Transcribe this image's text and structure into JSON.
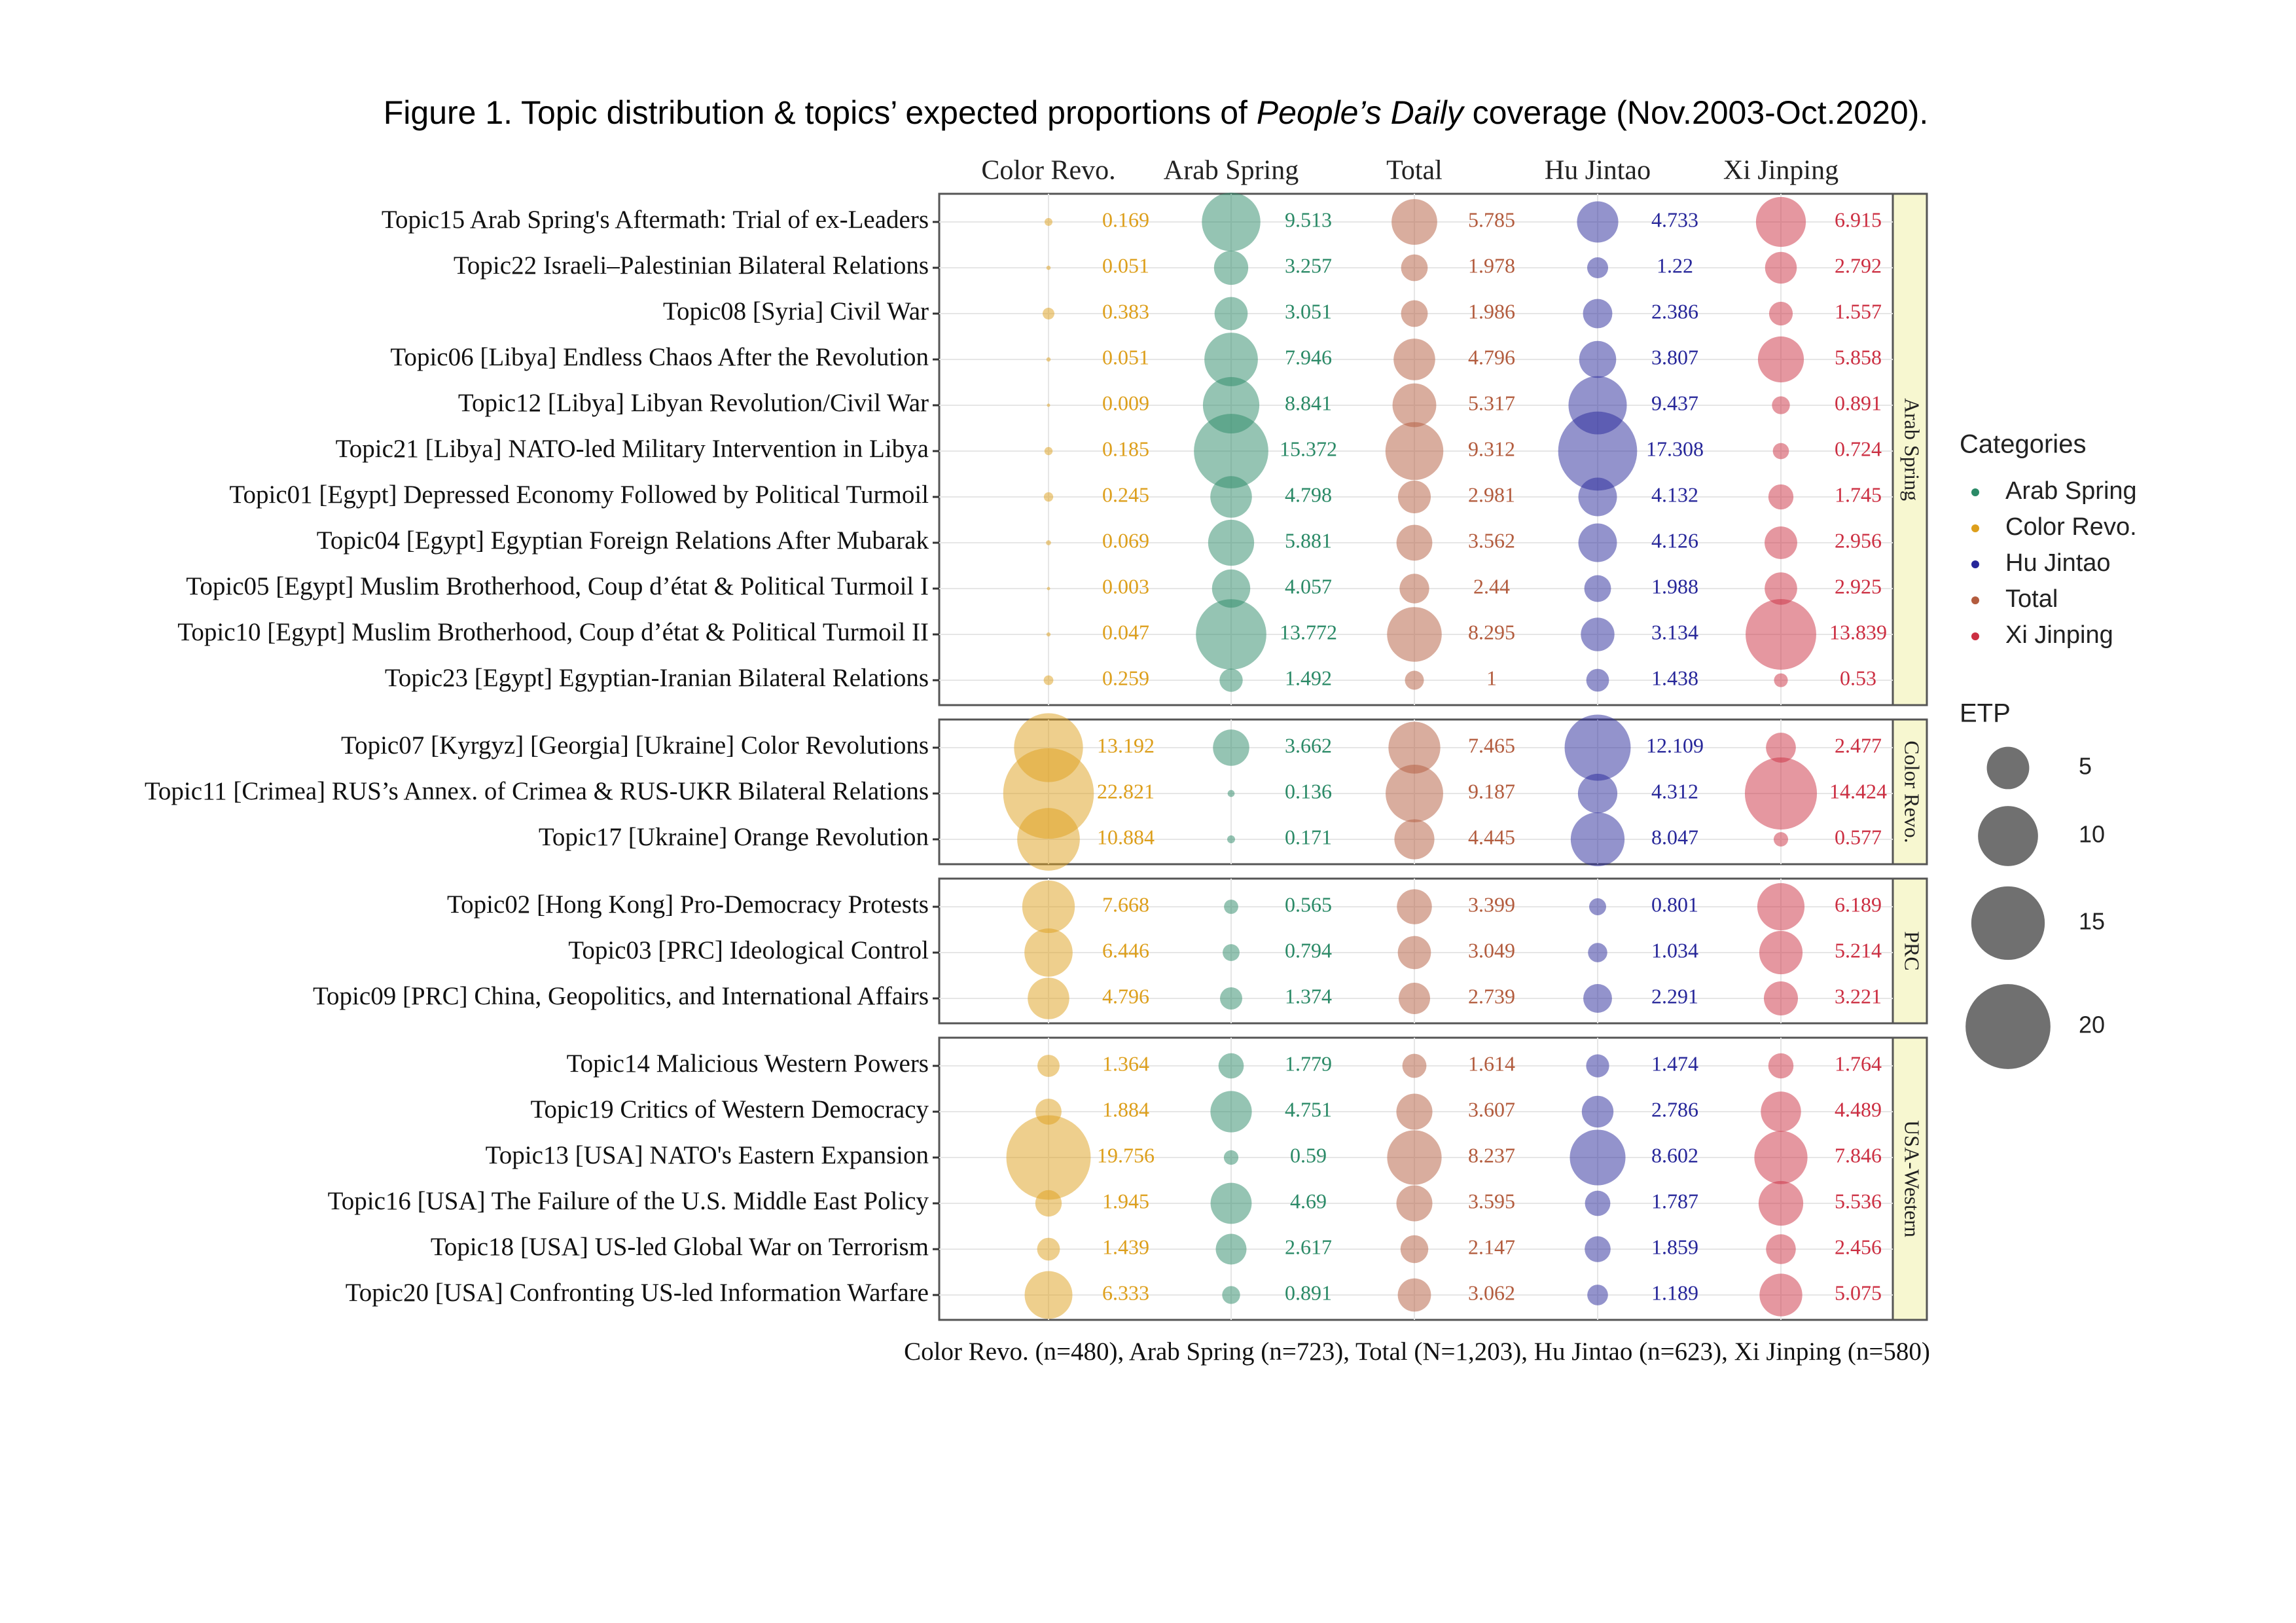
{
  "chart_data": {
    "type": "bubble-grid",
    "title": [
      "Figure 1. Topic distribution & topics’ expected proportions of ",
      "People’s Daily",
      " coverage (Nov.2003-Oct.2020)."
    ],
    "columns": [
      {
        "name": "Color Revo.",
        "color": "#dd9f1c"
      },
      {
        "name": "Arab Spring",
        "color": "#2b8a67"
      },
      {
        "name": "Total",
        "color": "#b35c3e"
      },
      {
        "name": "Hu Jintao",
        "color": "#27279a"
      },
      {
        "name": "Xi Jinping",
        "color": "#cc2f42"
      }
    ],
    "panels": [
      {
        "name": "Arab Spring",
        "rows": [
          {
            "label": "Topic15 Arab Spring's Aftermath: Trial of ex-Leaders",
            "values": [
              0.169,
              9.513,
              5.785,
              4.733,
              6.915
            ]
          },
          {
            "label": "Topic22 Israeli–Palestinian Bilateral Relations",
            "values": [
              0.051,
              3.257,
              1.978,
              1.22,
              2.792
            ]
          },
          {
            "label": "Topic08 [Syria] Civil War",
            "values": [
              0.383,
              3.051,
              1.986,
              2.386,
              1.557
            ]
          },
          {
            "label": "Topic06 [Libya] Endless Chaos After the Revolution",
            "values": [
              0.051,
              7.946,
              4.796,
              3.807,
              5.858
            ]
          },
          {
            "label": "Topic12 [Libya] Libyan Revolution/Civil War",
            "values": [
              0.009,
              8.841,
              5.317,
              9.437,
              0.891
            ]
          },
          {
            "label": "Topic21 [Libya] NATO-led Military Intervention in Libya",
            "values": [
              0.185,
              15.372,
              9.312,
              17.308,
              0.724
            ]
          },
          {
            "label": "Topic01 [Egypt] Depressed Economy Followed by Political Turmoil",
            "values": [
              0.245,
              4.798,
              2.981,
              4.132,
              1.745
            ]
          },
          {
            "label": "Topic04 [Egypt] Egyptian Foreign Relations After Mubarak",
            "values": [
              0.069,
              5.881,
              3.562,
              4.126,
              2.956
            ]
          },
          {
            "label": "Topic05 [Egypt] Muslim Brotherhood, Coup d’état & Political Turmoil I",
            "values": [
              0.003,
              4.057,
              2.44,
              1.988,
              2.925
            ]
          },
          {
            "label": "Topic10 [Egypt] Muslim Brotherhood, Coup d’état & Political Turmoil II",
            "values": [
              0.047,
              13.772,
              8.295,
              3.134,
              13.839
            ]
          },
          {
            "label": "Topic23 [Egypt] Egyptian-Iranian Bilateral Relations",
            "values": [
              0.259,
              1.492,
              1,
              1.438,
              0.53
            ]
          }
        ]
      },
      {
        "name": "Color Revo.",
        "rows": [
          {
            "label": "Topic07 [Kyrgyz] [Georgia] [Ukraine] Color Revolutions",
            "values": [
              13.192,
              3.662,
              7.465,
              12.109,
              2.477
            ]
          },
          {
            "label": "Topic11 [Crimea] RUS’s Annex. of Crimea & RUS-UKR Bilateral Relations",
            "values": [
              22.821,
              0.136,
              9.187,
              4.312,
              14.424
            ]
          },
          {
            "label": "Topic17 [Ukraine] Orange Revolution",
            "values": [
              10.884,
              0.171,
              4.445,
              8.047,
              0.577
            ]
          }
        ]
      },
      {
        "name": "PRC",
        "rows": [
          {
            "label": "Topic02 [Hong Kong] Pro-Democracy Protests",
            "values": [
              7.668,
              0.565,
              3.399,
              0.801,
              6.189
            ]
          },
          {
            "label": "Topic03 [PRC] Ideological Control",
            "values": [
              6.446,
              0.794,
              3.049,
              1.034,
              5.214
            ]
          },
          {
            "label": "Topic09 [PRC] China, Geopolitics, and International Affairs",
            "values": [
              4.796,
              1.374,
              2.739,
              2.291,
              3.221
            ]
          }
        ]
      },
      {
        "name": "USA-Western",
        "rows": [
          {
            "label": "Topic14 Malicious Western Powers",
            "values": [
              1.364,
              1.779,
              1.614,
              1.474,
              1.764
            ]
          },
          {
            "label": "Topic19 Critics of Western Democracy",
            "values": [
              1.884,
              4.751,
              3.607,
              2.786,
              4.489
            ]
          },
          {
            "label": "Topic13 [USA] NATO's Eastern Expansion",
            "values": [
              19.756,
              0.59,
              8.237,
              8.602,
              7.846
            ]
          },
          {
            "label": "Topic16 [USA] The Failure of the U.S. Middle East Policy",
            "values": [
              1.945,
              4.69,
              3.595,
              1.787,
              5.536
            ]
          },
          {
            "label": "Topic18 [USA] US-led Global War on Terrorism",
            "values": [
              1.439,
              2.617,
              2.147,
              1.859,
              2.456
            ]
          },
          {
            "label": "Topic20 [USA] Confronting US-led Information Warfare",
            "values": [
              6.333,
              0.891,
              3.062,
              1.189,
              5.075
            ]
          }
        ]
      }
    ],
    "legend_title": "Categories",
    "size_legend": {
      "title": "ETP",
      "values": [
        5,
        10,
        15,
        20
      ]
    },
    "note": "Color Revo. (n=480), Arab Spring (n=723), Total (N=1,203), Hu Jintao (n=623), Xi Jinping (n=580)"
  }
}
